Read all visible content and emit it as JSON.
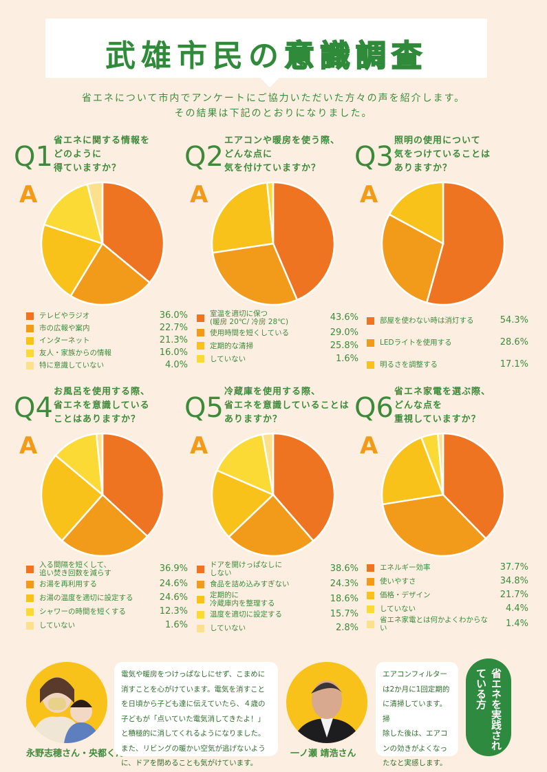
{
  "header": {
    "title_plain": "武雄市民の",
    "title_outline": "意識調査"
  },
  "intro": {
    "line1": "省エネについて市内でアンケートにご協力いただいた方々の声を紹介します。",
    "line2": "その結果は下記のとおりになりました。"
  },
  "answer_label": "A",
  "colors": {
    "c1": "#ee7421",
    "c2": "#f29b1b",
    "c3": "#f8c21a",
    "c4": "#fcda36",
    "c5": "#fde08c",
    "green": "#2e8a3e"
  },
  "chart_data": [
    {
      "type": "pie",
      "q": "Q",
      "n": "1",
      "title": "省エネに関する情報を\nどのように\n得ていますか？",
      "labels": [
        "テレビやラジオ",
        "市の広報や案内",
        "インターネット",
        "友人・家族からの情報",
        "特に意識していない"
      ],
      "values": [
        36.0,
        22.7,
        21.3,
        16.0,
        4.0
      ],
      "display": [
        "36.0%",
        "22.7%",
        "21.3%",
        "16.0%",
        "4.0%"
      ],
      "colors": [
        "#ee7421",
        "#f29b1b",
        "#f8c21a",
        "#fcda36",
        "#fde08c"
      ]
    },
    {
      "type": "pie",
      "q": "Q",
      "n": "2",
      "title": "エアコンや暖房を使う際、\nどんな点に\n気を付けていますか？",
      "labels": [
        "室温を適切に保つ\n(暖房 20℃/ 冷房 28℃)",
        "使用時間を短くしている",
        "定期的な清掃",
        "していない"
      ],
      "values": [
        43.6,
        29.0,
        25.8,
        1.6
      ],
      "display": [
        "43.6%",
        "29.0%",
        "25.8%",
        "1.6%"
      ],
      "colors": [
        "#ee7421",
        "#f29b1b",
        "#f8c21a",
        "#fcda36"
      ]
    },
    {
      "type": "pie",
      "q": "Q",
      "n": "3",
      "title": "照明の使用について\n気をつけていることは\nありますか？",
      "labels": [
        "部屋を使わない時は消灯する",
        "LEDライトを使用する",
        "明るさを調整する"
      ],
      "values": [
        54.3,
        28.6,
        17.1
      ],
      "display": [
        "54.3%",
        "28.6%",
        "17.1%"
      ],
      "colors": [
        "#ee7421",
        "#f29b1b",
        "#f8c21a"
      ]
    },
    {
      "type": "pie",
      "q": "Q",
      "n": "4",
      "title": "お風呂を使用する際、\n省エネを意識している\nことはありますか？",
      "labels": [
        "入る間隔を短くして、\n追い焚き回数を減らす",
        "お湯を再利用する",
        "お湯の温度を適切に設定する",
        "シャワーの時間を短くする",
        "していない"
      ],
      "values": [
        36.9,
        24.6,
        24.6,
        12.3,
        1.6
      ],
      "display": [
        "36.9%",
        "24.6%",
        "24.6%",
        "12.3%",
        "1.6%"
      ],
      "colors": [
        "#ee7421",
        "#f29b1b",
        "#f8c21a",
        "#fcda36",
        "#fde08c"
      ]
    },
    {
      "type": "pie",
      "q": "Q",
      "n": "5",
      "title": "冷蔵庫を使用する際、\n省エネを意識していることは\nありますか？",
      "labels": [
        "ドアを開けっぱなしに\nしない",
        "食品を詰め込みすぎない",
        "定期的に\n冷蔵庫内を整理する",
        "温度を適切に設定する",
        "していない"
      ],
      "values": [
        38.6,
        24.3,
        18.6,
        15.7,
        2.8
      ],
      "display": [
        "38.6%",
        "24.3%",
        "18.6%",
        "15.7%",
        "2.8%"
      ],
      "colors": [
        "#ee7421",
        "#f29b1b",
        "#f8c21a",
        "#fcda36",
        "#fde08c"
      ]
    },
    {
      "type": "pie",
      "q": "Q",
      "n": "6",
      "title": "省エネ家電を選ぶ際、\nどんな点を\n重視していますか？",
      "labels": [
        "エネルギー効率",
        "使いやすさ",
        "価格・デザイン",
        "していない",
        "省エネ家電とは何かよくわからない"
      ],
      "values": [
        37.7,
        34.8,
        21.7,
        4.4,
        1.4
      ],
      "display": [
        "37.7%",
        "34.8%",
        "21.7%",
        "4.4%",
        "1.4%"
      ],
      "colors": [
        "#ee7421",
        "#f29b1b",
        "#f8c21a",
        "#fcda36",
        "#fde08c"
      ]
    }
  ],
  "voices": [
    {
      "name": "永野志穂さん・央都くん",
      "comment": "電気や暖房をつけっぱなしにせず、こまめに\n消すことを心がけています。電気を消すこと\nを日頃から子ども達に伝えていたら、４歳の\n子どもが「点いていた電気消してきたよ！」\nと積極的に消してくれるようになりました。\nまた、リビングの暖かい空気が逃げないよう\nに、ドアを閉めることも気がけています。"
    },
    {
      "name": "一ノ瀬 靖浩さん",
      "comment": "エアコンフィルター\nは2か月に1回定期的\nに清掃しています。掃\n除した後は、エアコ\nンの効きがよくなっ\nたなと実感します。"
    }
  ],
  "badge": "省エネを実践されている方"
}
